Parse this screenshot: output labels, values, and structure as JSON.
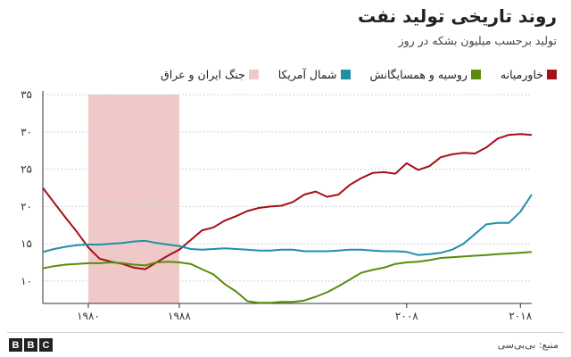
{
  "header": {
    "title": "روند تاریخی تولید نفت",
    "subtitle": "تولید برحسب میلیون بشکه در روز"
  },
  "footer": {
    "source": "منبع: بی‌بی‌سی",
    "logo_letters": [
      "B",
      "B",
      "C"
    ]
  },
  "colors": {
    "middle_east": "#a50f15",
    "russia": "#5a8c0a",
    "north_america": "#1f8fa8",
    "war_band": "#efc8c8"
  },
  "chart_data": {
    "type": "line",
    "title": "روند تاریخی تولید نفت",
    "subtitle": "تولید برحسب میلیون بشکه در روز",
    "xlim": [
      1976,
      2019
    ],
    "ylim": [
      7,
      35
    ],
    "yticks": [
      10,
      15,
      20,
      25,
      30,
      35
    ],
    "ytick_labels": [
      "۱۰",
      "۱۵",
      "۲۰",
      "۲۵",
      "۳۰",
      "۳۵"
    ],
    "xticks": [
      1980,
      1988,
      2008,
      2018
    ],
    "xtick_labels": [
      "۱۹۸۰",
      "۱۹۸۸",
      "۲۰۰۸",
      "۲۰۱۸"
    ],
    "grid": true,
    "legend_position": "top",
    "shaded_regions": [
      {
        "name": "جنگ ایران و عراق",
        "start": 1980,
        "end": 1988
      }
    ],
    "series": [
      {
        "name": "خاورمیانه",
        "color_key": "middle_east",
        "x": [
          1976,
          1977,
          1978,
          1979,
          1980,
          1981,
          1982,
          1983,
          1984,
          1985,
          1986,
          1987,
          1988,
          1989,
          1990,
          1991,
          1992,
          1993,
          1994,
          1995,
          1996,
          1997,
          1998,
          1999,
          2000,
          2001,
          2002,
          2003,
          2004,
          2005,
          2006,
          2007,
          2008,
          2009,
          2010,
          2011,
          2012,
          2013,
          2014,
          2015,
          2016,
          2017,
          2018,
          2019
        ],
        "values": [
          22.5,
          20.5,
          18.5,
          16.6,
          14.5,
          13.0,
          12.6,
          12.3,
          11.8,
          11.6,
          12.5,
          13.4,
          14.2,
          15.5,
          16.8,
          17.2,
          18.1,
          18.7,
          19.4,
          19.8,
          20.0,
          20.1,
          20.6,
          21.6,
          22.0,
          21.3,
          21.6,
          22.9,
          23.8,
          24.5,
          24.6,
          24.4,
          25.8,
          24.9,
          25.4,
          26.6,
          27.0,
          27.2,
          27.1,
          27.9,
          29.1,
          29.6,
          29.7,
          29.6
        ]
      },
      {
        "name": "روسیه و همسایگانش",
        "color_key": "russia",
        "x": [
          1976,
          1977,
          1978,
          1979,
          1980,
          1981,
          1982,
          1983,
          1984,
          1985,
          1986,
          1987,
          1988,
          1989,
          1990,
          1991,
          1992,
          1993,
          1994,
          1995,
          1996,
          1997,
          1998,
          1999,
          2000,
          2001,
          2002,
          2003,
          2004,
          2005,
          2006,
          2007,
          2008,
          2009,
          2010,
          2011,
          2012,
          2013,
          2014,
          2015,
          2016,
          2017,
          2018,
          2019
        ],
        "values": [
          11.7,
          12.0,
          12.2,
          12.3,
          12.4,
          12.4,
          12.5,
          12.4,
          12.2,
          12.1,
          12.5,
          12.6,
          12.5,
          12.3,
          11.6,
          10.9,
          9.6,
          8.6,
          7.3,
          7.1,
          7.1,
          7.2,
          7.2,
          7.4,
          7.9,
          8.5,
          9.3,
          10.2,
          11.1,
          11.5,
          11.8,
          12.3,
          12.5,
          12.6,
          12.8,
          13.1,
          13.2,
          13.3,
          13.4,
          13.5,
          13.6,
          13.7,
          13.8,
          13.9
        ]
      },
      {
        "name": "شمال آمریکا",
        "color_key": "north_america",
        "x": [
          1976,
          1977,
          1978,
          1979,
          1980,
          1981,
          1982,
          1983,
          1984,
          1985,
          1986,
          1987,
          1988,
          1989,
          1990,
          1991,
          1992,
          1993,
          1994,
          1995,
          1996,
          1997,
          1998,
          1999,
          2000,
          2001,
          2002,
          2003,
          2004,
          2005,
          2006,
          2007,
          2008,
          2009,
          2010,
          2011,
          2012,
          2013,
          2014,
          2015,
          2016,
          2017,
          2018,
          2019
        ],
        "values": [
          13.9,
          14.3,
          14.6,
          14.8,
          14.9,
          14.9,
          15.0,
          15.1,
          15.3,
          15.4,
          15.1,
          14.9,
          14.7,
          14.3,
          14.2,
          14.3,
          14.4,
          14.3,
          14.2,
          14.1,
          14.1,
          14.2,
          14.2,
          14.0,
          14.0,
          14.0,
          14.1,
          14.2,
          14.2,
          14.1,
          14.0,
          14.0,
          13.9,
          13.5,
          13.6,
          13.8,
          14.2,
          15.0,
          16.3,
          17.6,
          17.8,
          17.8,
          19.3,
          21.6
        ]
      }
    ]
  }
}
